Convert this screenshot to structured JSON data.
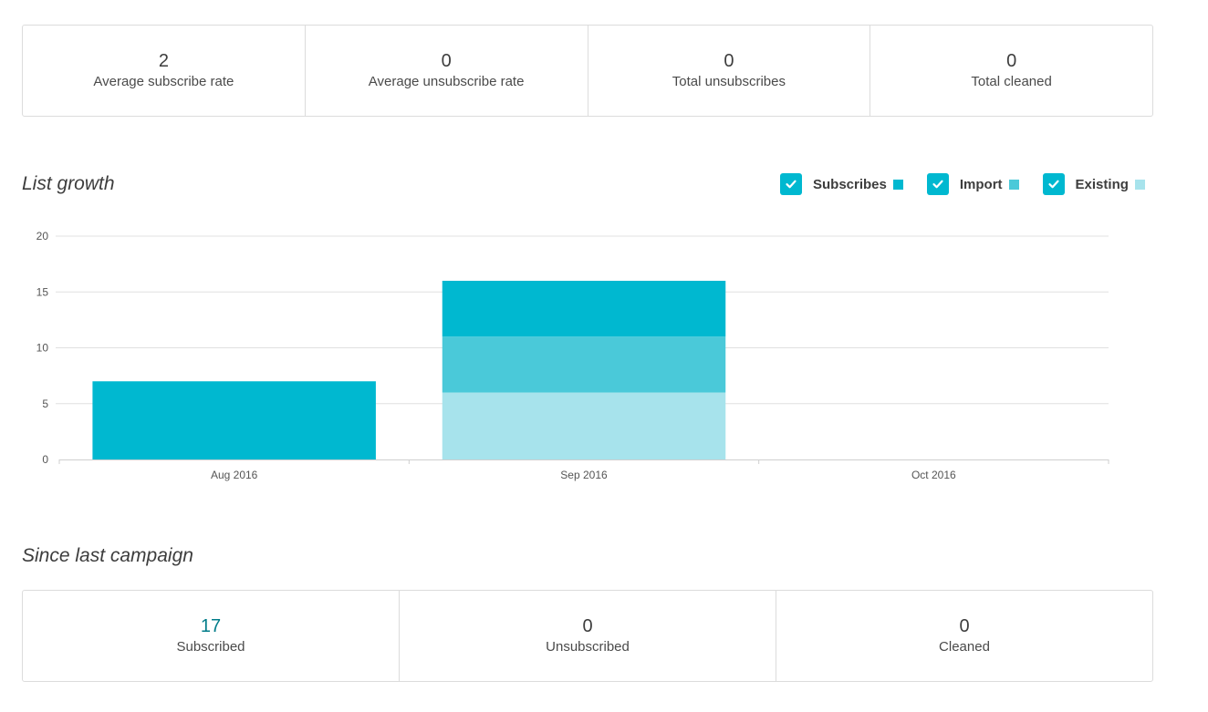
{
  "top_stats": [
    {
      "value": "2",
      "label": "Average subscribe rate"
    },
    {
      "value": "0",
      "label": "Average unsubscribe rate"
    },
    {
      "value": "0",
      "label": "Total unsubscribes"
    },
    {
      "value": "0",
      "label": "Total cleaned"
    }
  ],
  "list_growth": {
    "title": "List growth",
    "legend": [
      {
        "label": "Subscribes",
        "color": "#00b8d0",
        "checked": true,
        "icon": "check-icon"
      },
      {
        "label": "Import",
        "color": "#4ac9d9",
        "checked": true,
        "icon": "check-icon"
      },
      {
        "label": "Existing",
        "color": "#a7e3ec",
        "checked": true,
        "icon": "check-icon"
      }
    ]
  },
  "chart_data": {
    "type": "bar",
    "stacked": true,
    "categories": [
      "Aug 2016",
      "Sep 2016",
      "Oct 2016"
    ],
    "series": [
      {
        "name": "Existing",
        "color": "#a7e3ec",
        "values": [
          0,
          6,
          0
        ]
      },
      {
        "name": "Import",
        "color": "#4ac9d9",
        "values": [
          0,
          5,
          0
        ]
      },
      {
        "name": "Subscribes",
        "color": "#00b8d0",
        "values": [
          7,
          5,
          0
        ]
      }
    ],
    "ylim": [
      0,
      20
    ],
    "yticks": [
      0,
      5,
      10,
      15,
      20
    ],
    "grid": true,
    "legend_position": "top-right",
    "xlabel": "",
    "ylabel": ""
  },
  "since_last_campaign": {
    "title": "Since last campaign",
    "stats": [
      {
        "value": "17",
        "label": "Subscribed"
      },
      {
        "value": "0",
        "label": "Unsubscribed"
      },
      {
        "value": "0",
        "label": "Cleaned"
      }
    ]
  }
}
